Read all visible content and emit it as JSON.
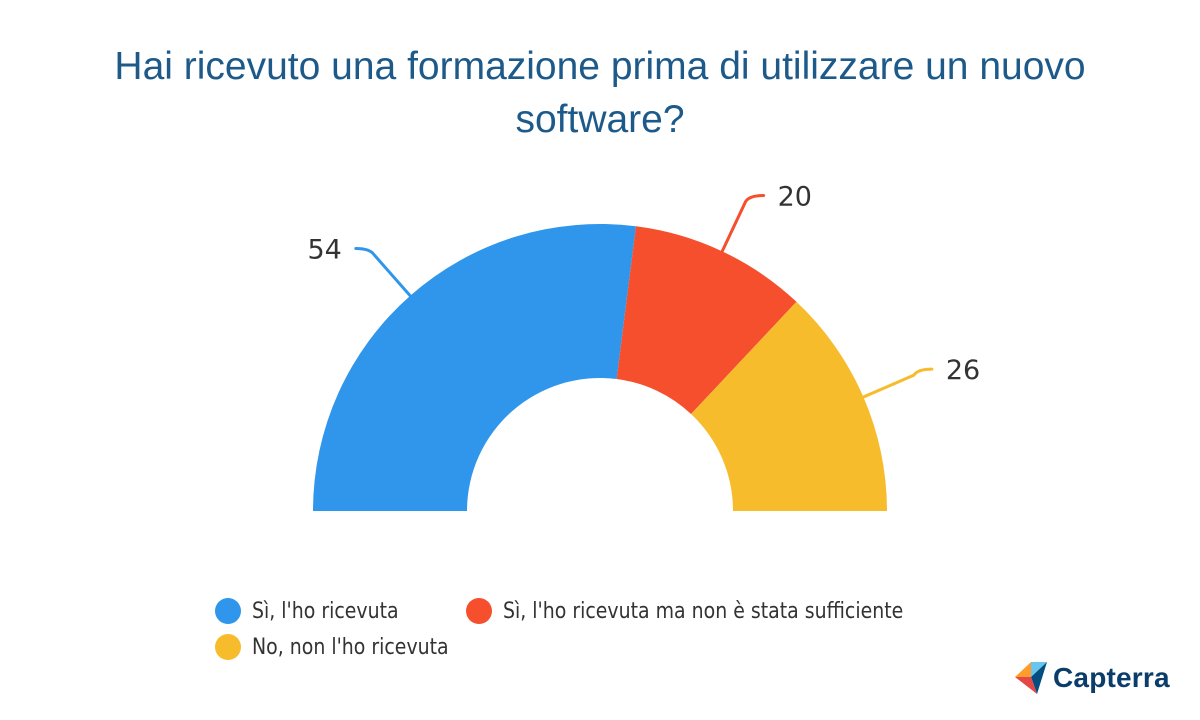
{
  "title": "Hai ricevuto una formazione prima di utilizzare un nuovo software?",
  "chart_data": {
    "type": "pie",
    "variant": "half-donut",
    "title": "Hai ricevuto una formazione prima di utilizzare un nuovo software?",
    "categories": [
      "Sì, l'ho ricevuta",
      "Sì, l'ho ricevuta ma non è stata sufficiente",
      "No, non l'ho ricevuta"
    ],
    "values": [
      54,
      20,
      26
    ],
    "colors": [
      "#3096eb",
      "#f64f2d",
      "#f6bc2c"
    ],
    "data_labels": [
      "54",
      "20",
      "26"
    ],
    "legend_position": "bottom"
  },
  "brand": {
    "name": "Capterra",
    "icon": "capterra-logo-icon"
  }
}
